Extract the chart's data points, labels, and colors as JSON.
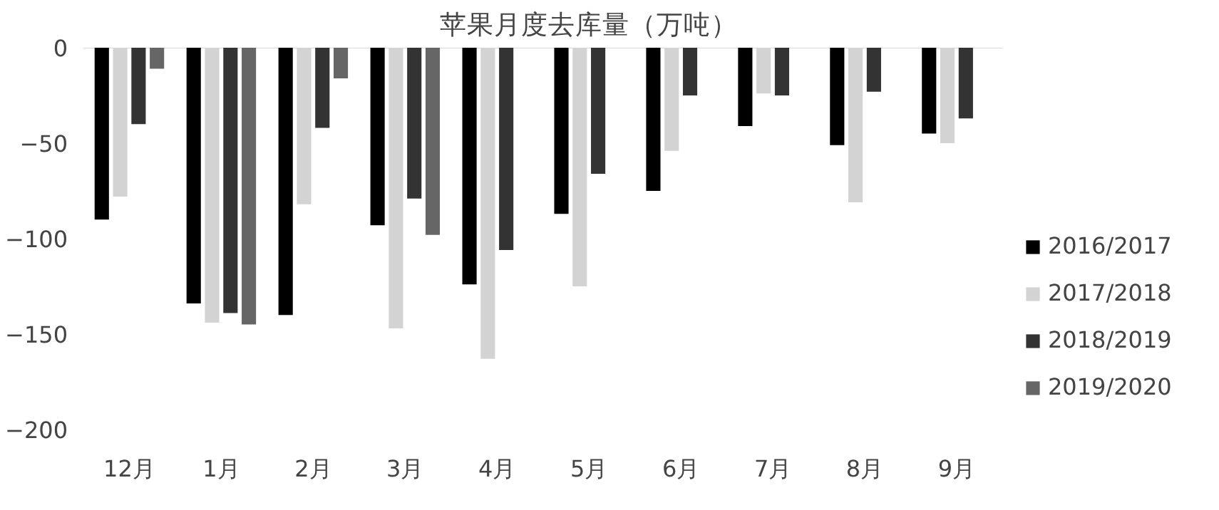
{
  "chart_data": {
    "type": "bar",
    "title": "苹果月度去库量（万吨）",
    "categories": [
      "12月",
      "1月",
      "2月",
      "3月",
      "4月",
      "5月",
      "6月",
      "7月",
      "8月",
      "9月"
    ],
    "series": [
      {
        "name": "2016/2017",
        "color": "#000000",
        "values": [
          -90,
          -134,
          -140,
          -93,
          -124,
          -87,
          -75,
          -41,
          -51,
          -45
        ]
      },
      {
        "name": "2017/2018",
        "color": "#d3d3d3",
        "values": [
          -78,
          -144,
          -82,
          -147,
          -163,
          -125,
          -54,
          -24,
          -81,
          -50
        ]
      },
      {
        "name": "2018/2019",
        "color": "#333333",
        "values": [
          -40,
          -139,
          -42,
          -79,
          -106,
          -66,
          -25,
          -25,
          -23,
          -37
        ]
      },
      {
        "name": "2019/2020",
        "color": "#666666",
        "values": [
          -11,
          -145,
          -16,
          -98,
          null,
          null,
          null,
          null,
          null,
          null
        ]
      }
    ],
    "ylim": [
      -200,
      0
    ],
    "yticks": [
      0,
      -50,
      -100,
      -150,
      -200
    ],
    "grid": false,
    "legend": "right"
  }
}
